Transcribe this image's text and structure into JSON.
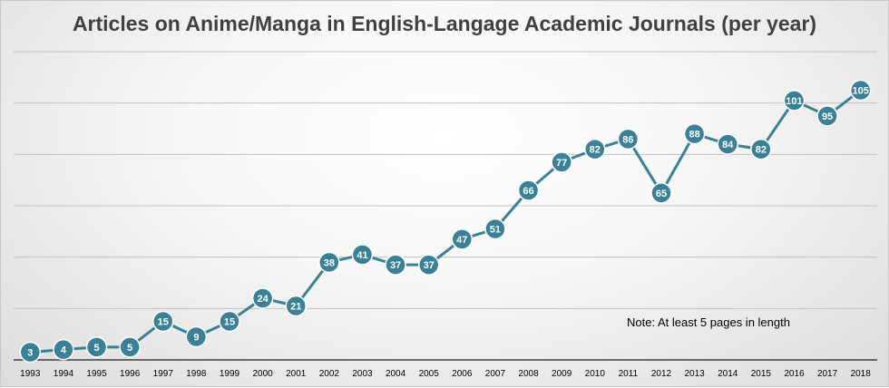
{
  "chart_data": {
    "type": "line",
    "title": "Articles on Anime/Manga in English-Langage Academic Journals (per year)",
    "note": "Note: At least 5 pages in length",
    "xlabel": "",
    "ylabel": "",
    "ylim": [
      0,
      120
    ],
    "ytick_step": 20,
    "grid": true,
    "series_color": "#3a8096",
    "categories": [
      "1993",
      "1994",
      "1995",
      "1996",
      "1997",
      "1998",
      "1999",
      "2000",
      "2001",
      "2002",
      "2003",
      "2004",
      "2005",
      "2006",
      "2007",
      "2008",
      "2009",
      "2010",
      "2011",
      "2012",
      "2013",
      "2014",
      "2015",
      "2016",
      "2017",
      "2018"
    ],
    "values": [
      3,
      4,
      5,
      5,
      15,
      9,
      15,
      24,
      21,
      38,
      41,
      37,
      37,
      47,
      51,
      66,
      77,
      82,
      86,
      65,
      88,
      84,
      82,
      101,
      95,
      105
    ]
  }
}
